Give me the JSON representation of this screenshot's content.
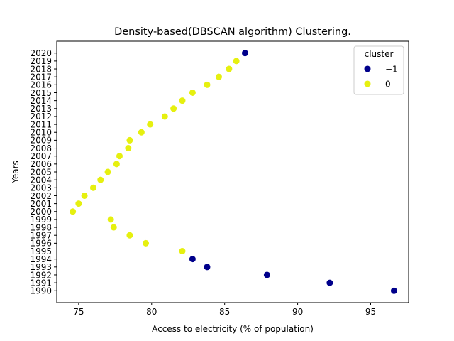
{
  "chart_data": {
    "type": "scatter",
    "title": "Density-based(DBSCAN algorithm) Clustering.",
    "xlabel": "Access to electricity (% of population)",
    "ylabel": "Years",
    "xlim": [
      73.5,
      97.6
    ],
    "ylim": [
      1988.5,
      2021.5
    ],
    "xticks": [
      75,
      80,
      85,
      90,
      95
    ],
    "yticks": [
      1990,
      1991,
      1992,
      1993,
      1994,
      1995,
      1996,
      1997,
      1998,
      1999,
      2000,
      2001,
      2002,
      2003,
      2004,
      2005,
      2006,
      2007,
      2008,
      2009,
      2010,
      2011,
      2012,
      2013,
      2014,
      2015,
      2016,
      2017,
      2018,
      2019,
      2020
    ],
    "grid": false,
    "legend": {
      "title": "cluster",
      "placement": "top-right",
      "entries": [
        {
          "label": "−1",
          "color": "#00008b"
        },
        {
          "label": "0",
          "color": "#e6f00f"
        }
      ]
    },
    "series": [
      {
        "name": "−1",
        "color": "#00008b",
        "points": [
          {
            "x": 96.6,
            "y": 1990
          },
          {
            "x": 92.2,
            "y": 1991
          },
          {
            "x": 87.9,
            "y": 1992
          },
          {
            "x": 83.8,
            "y": 1993
          },
          {
            "x": 82.8,
            "y": 1994
          },
          {
            "x": 86.4,
            "y": 2020
          }
        ]
      },
      {
        "name": "0",
        "color": "#e6f00f",
        "points": [
          {
            "x": 82.1,
            "y": 1995
          },
          {
            "x": 79.6,
            "y": 1996
          },
          {
            "x": 78.5,
            "y": 1997
          },
          {
            "x": 77.4,
            "y": 1998
          },
          {
            "x": 77.2,
            "y": 1999
          },
          {
            "x": 74.6,
            "y": 2000
          },
          {
            "x": 75.0,
            "y": 2001
          },
          {
            "x": 75.4,
            "y": 2002
          },
          {
            "x": 76.0,
            "y": 2003
          },
          {
            "x": 76.5,
            "y": 2004
          },
          {
            "x": 77.0,
            "y": 2005
          },
          {
            "x": 77.6,
            "y": 2006
          },
          {
            "x": 77.8,
            "y": 2007
          },
          {
            "x": 78.4,
            "y": 2008
          },
          {
            "x": 78.5,
            "y": 2009
          },
          {
            "x": 79.3,
            "y": 2010
          },
          {
            "x": 79.9,
            "y": 2011
          },
          {
            "x": 80.9,
            "y": 2012
          },
          {
            "x": 81.5,
            "y": 2013
          },
          {
            "x": 82.1,
            "y": 2014
          },
          {
            "x": 82.8,
            "y": 2015
          },
          {
            "x": 83.8,
            "y": 2016
          },
          {
            "x": 84.6,
            "y": 2017
          },
          {
            "x": 85.3,
            "y": 2018
          },
          {
            "x": 85.8,
            "y": 2019
          }
        ]
      }
    ]
  }
}
